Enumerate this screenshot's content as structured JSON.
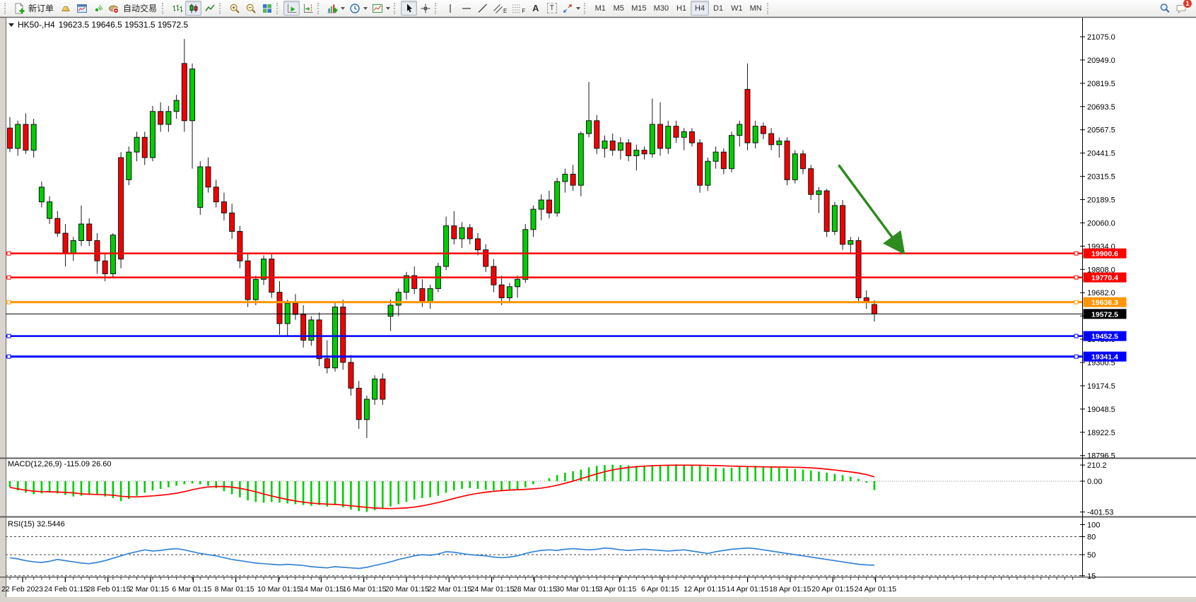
{
  "toolbar": {
    "new_order_label": "新订单",
    "auto_trading_label": "自动交易",
    "timeframes": [
      "M1",
      "M5",
      "M15",
      "M30",
      "H1",
      "H4",
      "D1",
      "W1",
      "MN"
    ],
    "active_timeframe": "H4",
    "text_tool_label": "A",
    "channel_tool_label": "E",
    "fibo_tool_label": "F",
    "label_tool_label": "T",
    "notification_count": "1",
    "icons": [
      "new-order-icon",
      "profiles-icon",
      "terminal-icon",
      "signals-icon",
      "auto-trading-icon",
      "bar-chart-icon",
      "candlestick-chart-icon",
      "line-chart-icon",
      "zoom-in-icon",
      "zoom-out-icon",
      "tile-windows-icon",
      "auto-scroll-icon",
      "chart-shift-icon",
      "indicators-icon",
      "periods-icon",
      "templates-icon",
      "cursor-icon",
      "crosshair-icon",
      "vertical-line-icon",
      "horizontal-line-icon",
      "trendline-icon",
      "equidistant-channel-icon",
      "fibonacci-icon",
      "text-icon",
      "text-label-icon",
      "arrows-icon",
      "search-icon",
      "chat-icon"
    ]
  },
  "chart": {
    "symbol_period": "HK50-,H4",
    "ohlc_text": "19623.5 19646.5 19531.5 19572.5",
    "bull_color": "#00CE00",
    "bear_color": "#F40000",
    "background": "#FFFFFF"
  },
  "price_axis": {
    "ticks": [
      "21075.0",
      "20949.0",
      "20819.5",
      "20693.5",
      "20567.5",
      "20441.5",
      "20315.5",
      "20189.5",
      "20060.0",
      "19934.0",
      "19808.0",
      "19682.0",
      "19556.0",
      "19430.0",
      "19300.5",
      "19174.5",
      "19048.5",
      "18922.5",
      "18796.5"
    ]
  },
  "levels": [
    {
      "label": "19900.6",
      "price": 19900.6,
      "color": "#FF0000",
      "width": 2.5
    },
    {
      "label": "19770.4",
      "price": 19770.4,
      "color": "#FF0000",
      "width": 2.5
    },
    {
      "label": "19636.3",
      "price": 19636.3,
      "color": "#FF9500",
      "width": 3
    },
    {
      "label": "19452.5",
      "price": 19452.5,
      "color": "#0000FF",
      "width": 2.5
    },
    {
      "label": "19341.4",
      "price": 19341.4,
      "color": "#0000FF",
      "width": 3
    }
  ],
  "current_price": {
    "label": "19572.5",
    "price": 19572.5,
    "badge_color": "#000000"
  },
  "macd": {
    "label": "MACD(12,26,9) -115.09 26.60",
    "ticks": [
      "210.2",
      "0.00",
      "-401.53"
    ],
    "histogram_color": "#00CE00",
    "signal_color": "#FF0000"
  },
  "rsi": {
    "label": "RSI(15) 32.5446",
    "ticks": [
      "100",
      "80",
      "50",
      "15"
    ],
    "dashed_levels": [
      80,
      50,
      15
    ],
    "line_color": "#3585D6"
  },
  "time_axis": {
    "labels": [
      "22 Feb 2023",
      "24 Feb 01:15",
      "28 Feb 01:15",
      "2 Mar 01:15",
      "6 Mar 01:15",
      "8 Mar 01:15",
      "10 Mar 01:15",
      "14 Mar 01:15",
      "16 Mar 01:15",
      "20 Mar 01:15",
      "22 Mar 01:15",
      "24 Mar 01:15",
      "28 Mar 01:15",
      "30 Mar 01:15",
      "3 Apr 01:15",
      "6 Apr 01:15",
      "12 Apr 01:15",
      "14 Apr 01:15",
      "18 Apr 01:15",
      "20 Apr 01:15",
      "24 Apr 01:15"
    ]
  },
  "chart_data": {
    "type": "candlestick",
    "title": "HK50-,H4",
    "price_range": [
      18796.5,
      21075.0
    ],
    "candles": [
      [
        20580,
        20640,
        20450,
        20470
      ],
      [
        20470,
        20620,
        20430,
        20600
      ],
      [
        20600,
        20660,
        20440,
        20460
      ],
      [
        20460,
        20630,
        20420,
        20600
      ],
      [
        20180,
        20290,
        20150,
        20260
      ],
      [
        20090,
        20210,
        20060,
        20180
      ],
      [
        20090,
        20130,
        19990,
        20010
      ],
      [
        20010,
        20060,
        19830,
        19900
      ],
      [
        19900,
        19990,
        19860,
        19970
      ],
      [
        19970,
        20160,
        19940,
        20060
      ],
      [
        20060,
        20090,
        19940,
        19970
      ],
      [
        19970,
        20010,
        19790,
        19860
      ],
      [
        19860,
        19900,
        19750,
        19790
      ],
      [
        19790,
        20010,
        19770,
        20000
      ],
      [
        20420,
        20450,
        19820,
        19870
      ],
      [
        20300,
        20480,
        20270,
        20450
      ],
      [
        20450,
        20560,
        20400,
        20530
      ],
      [
        20530,
        20560,
        20380,
        20420
      ],
      [
        20420,
        20700,
        20400,
        20670
      ],
      [
        20670,
        20720,
        20560,
        20600
      ],
      [
        20600,
        20700,
        20560,
        20670
      ],
      [
        20670,
        20760,
        20630,
        20730
      ],
      [
        20930,
        21063,
        20560,
        20620
      ],
      [
        20620,
        20930,
        20360,
        20900
      ],
      [
        20150,
        20400,
        20110,
        20370
      ],
      [
        20370,
        20420,
        20230,
        20260
      ],
      [
        20260,
        20300,
        20150,
        20180
      ],
      [
        20180,
        20230,
        20080,
        20120
      ],
      [
        20120,
        20170,
        19980,
        20020
      ],
      [
        20020,
        20050,
        19820,
        19860
      ],
      [
        19860,
        19900,
        19610,
        19650
      ],
      [
        19650,
        19780,
        19620,
        19760
      ],
      [
        19760,
        19890,
        19730,
        19870
      ],
      [
        19870,
        19900,
        19660,
        19690
      ],
      [
        19690,
        19750,
        19460,
        19520
      ],
      [
        19520,
        19650,
        19450,
        19630
      ],
      [
        19630,
        19680,
        19540,
        19570
      ],
      [
        19570,
        19620,
        19390,
        19430
      ],
      [
        19430,
        19560,
        19400,
        19540
      ],
      [
        19540,
        19580,
        19290,
        19330
      ],
      [
        19330,
        19430,
        19250,
        19280
      ],
      [
        19280,
        19640,
        19260,
        19610
      ],
      [
        19610,
        19650,
        19270,
        19310
      ],
      [
        19310,
        19350,
        19130,
        19170
      ],
      [
        19170,
        19210,
        18950,
        19000
      ],
      [
        19000,
        19130,
        18900,
        19110
      ],
      [
        19110,
        19240,
        19080,
        19220
      ],
      [
        19220,
        19250,
        19080,
        19110
      ],
      [
        19560,
        19650,
        19480,
        19620
      ],
      [
        19620,
        19710,
        19560,
        19690
      ],
      [
        19690,
        19800,
        19650,
        19780
      ],
      [
        19780,
        19830,
        19680,
        19710
      ],
      [
        19710,
        19760,
        19610,
        19640
      ],
      [
        19640,
        19730,
        19600,
        19710
      ],
      [
        19710,
        19850,
        19690,
        19830
      ],
      [
        19830,
        20100,
        19810,
        20050
      ],
      [
        20050,
        20130,
        19950,
        19980
      ],
      [
        19980,
        20070,
        19930,
        20040
      ],
      [
        20040,
        20060,
        19950,
        19980
      ],
      [
        19980,
        20010,
        19890,
        19920
      ],
      [
        19920,
        19950,
        19800,
        19830
      ],
      [
        19830,
        19870,
        19690,
        19730
      ],
      [
        19730,
        19780,
        19620,
        19660
      ],
      [
        19660,
        19740,
        19630,
        19720
      ],
      [
        19720,
        19780,
        19660,
        19760
      ],
      [
        19760,
        20060,
        19740,
        20030
      ],
      [
        20030,
        20160,
        19990,
        20140
      ],
      [
        20140,
        20220,
        20080,
        20190
      ],
      [
        20190,
        20240,
        20090,
        20120
      ],
      [
        20120,
        20310,
        20100,
        20290
      ],
      [
        20290,
        20360,
        20230,
        20330
      ],
      [
        20330,
        20380,
        20240,
        20270
      ],
      [
        20270,
        20560,
        20210,
        20550
      ],
      [
        20550,
        20830,
        20530,
        20620
      ],
      [
        20620,
        20650,
        20440,
        20470
      ],
      [
        20470,
        20540,
        20420,
        20510
      ],
      [
        20510,
        20550,
        20430,
        20460
      ],
      [
        20460,
        20530,
        20410,
        20500
      ],
      [
        20500,
        20520,
        20400,
        20430
      ],
      [
        20430,
        20490,
        20350,
        20460
      ],
      [
        20460,
        20480,
        20410,
        20440
      ],
      [
        20440,
        20740,
        20420,
        20600
      ],
      [
        20600,
        20720,
        20430,
        20470
      ],
      [
        20470,
        20620,
        20440,
        20590
      ],
      [
        20590,
        20620,
        20500,
        20530
      ],
      [
        20530,
        20580,
        20460,
        20560
      ],
      [
        20560,
        20580,
        20480,
        20500
      ],
      [
        20500,
        20520,
        20230,
        20270
      ],
      [
        20270,
        20420,
        20240,
        20400
      ],
      [
        20400,
        20480,
        20360,
        20450
      ],
      [
        20450,
        20470,
        20330,
        20360
      ],
      [
        20360,
        20560,
        20340,
        20540
      ],
      [
        20540,
        20620,
        20480,
        20600
      ],
      [
        20790,
        20930,
        20460,
        20500
      ],
      [
        20500,
        20620,
        20470,
        20590
      ],
      [
        20590,
        20610,
        20520,
        20550
      ],
      [
        20550,
        20580,
        20460,
        20490
      ],
      [
        20490,
        20530,
        20420,
        20510
      ],
      [
        20510,
        20530,
        20270,
        20300
      ],
      [
        20300,
        20460,
        20280,
        20440
      ],
      [
        20440,
        20460,
        20330,
        20360
      ],
      [
        20360,
        20380,
        20190,
        20220
      ],
      [
        20220,
        20260,
        20120,
        20240
      ],
      [
        20240,
        20250,
        19990,
        20020
      ],
      [
        20020,
        20180,
        20000,
        20160
      ],
      [
        20160,
        20190,
        19920,
        19950
      ],
      [
        19950,
        19990,
        19900,
        19970
      ],
      [
        19970,
        19990,
        19630,
        19660
      ],
      [
        19660,
        19700,
        19600,
        19640
      ],
      [
        19623.5,
        19646.5,
        19531.5,
        19572.5
      ]
    ],
    "macd_histogram": [
      -80,
      -120,
      -150,
      -170,
      -160,
      -150,
      -160,
      -180,
      -200,
      -190,
      -170,
      -180,
      -200,
      -220,
      -260,
      -230,
      -190,
      -150,
      -120,
      -100,
      -80,
      -60,
      -40,
      -30,
      -40,
      -60,
      -90,
      -130,
      -170,
      -210,
      -250,
      -270,
      -280,
      -270,
      -280,
      -290,
      -300,
      -310,
      -320,
      -310,
      -330,
      -310,
      -340,
      -370,
      -390,
      -400,
      -380,
      -360,
      -330,
      -300,
      -270,
      -240,
      -220,
      -210,
      -190,
      -150,
      -120,
      -100,
      -90,
      -100,
      -110,
      -120,
      -130,
      -120,
      -110,
      -80,
      -40,
      0,
      40,
      80,
      110,
      130,
      150,
      180,
      200,
      210,
      215,
      210,
      205,
      200,
      195,
      200,
      210,
      215,
      220,
      215,
      210,
      200,
      185,
      175,
      170,
      175,
      185,
      195,
      200,
      195,
      185,
      175,
      165,
      160,
      150,
      140,
      125,
      110,
      95,
      80,
      60,
      30,
      -20,
      -115
    ],
    "rsi_values": [
      45,
      43,
      40,
      38,
      37,
      39,
      42,
      40,
      38,
      36,
      35,
      37,
      40,
      44,
      48,
      52,
      55,
      58,
      56,
      57,
      59,
      60,
      58,
      55,
      52,
      50,
      48,
      45,
      42,
      40,
      38,
      36,
      35,
      34,
      33,
      34,
      33,
      32,
      30,
      29,
      28,
      30,
      29,
      28,
      27,
      29,
      32,
      35,
      38,
      42,
      45,
      48,
      50,
      49,
      51,
      55,
      54,
      52,
      50,
      49,
      48,
      46,
      45,
      46,
      48,
      52,
      55,
      57,
      58,
      57,
      59,
      60,
      59,
      58,
      59,
      61,
      60,
      58,
      57,
      58,
      59,
      58,
      57,
      56,
      57,
      58,
      56,
      54,
      52,
      55,
      57,
      59,
      60,
      61,
      60,
      58,
      56,
      54,
      52,
      50,
      48,
      46,
      44,
      42,
      40,
      38,
      36,
      34,
      33,
      32.5
    ],
    "annotations": [
      {
        "type": "arrow",
        "from": {
          "bar": 104.5,
          "price": 20380
        },
        "to": {
          "bar": 112.5,
          "price": 19915
        },
        "color": "#2E8B1F"
      }
    ]
  }
}
